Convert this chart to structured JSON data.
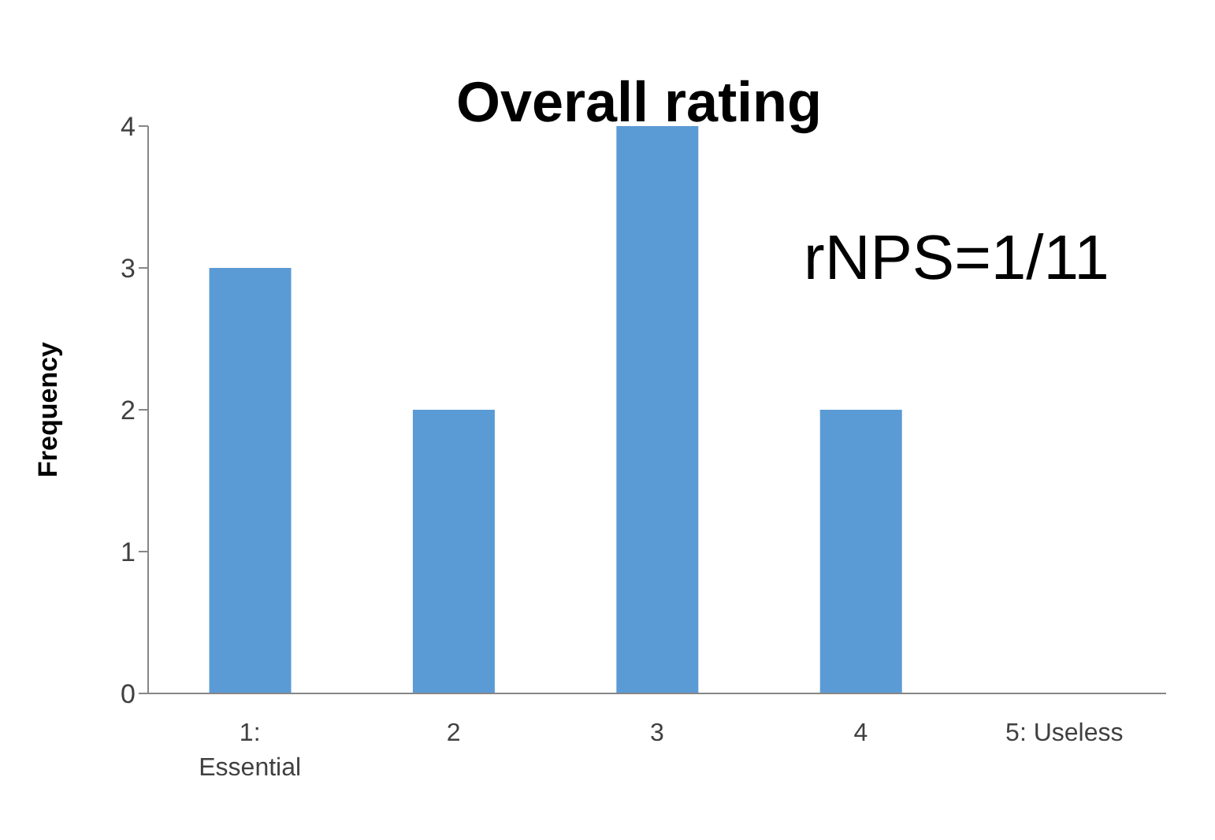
{
  "chart_data": {
    "type": "bar",
    "title": "Overall rating",
    "ylabel": "Frequency",
    "categories": [
      "1: Essential",
      "2",
      "3",
      "4",
      "5: Useless"
    ],
    "values": [
      3,
      2,
      4,
      2,
      0
    ],
    "color": "#5b9bd5",
    "ylim": [
      0,
      4
    ],
    "yticks": [
      0,
      1,
      2,
      3,
      4
    ],
    "annotations": [
      "rNPS=1/11"
    ]
  }
}
